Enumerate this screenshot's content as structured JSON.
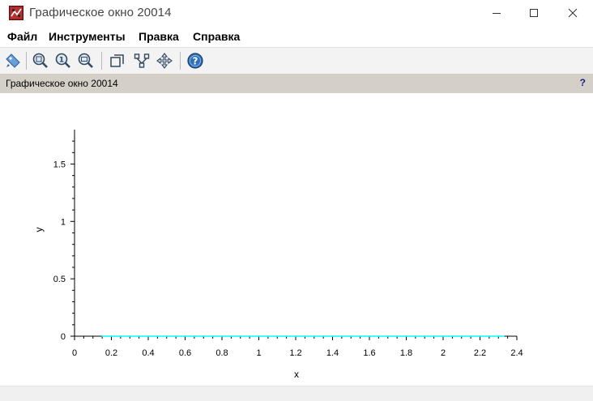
{
  "window": {
    "title": "Графическое окно 20014",
    "icon": "scilab-figure-icon",
    "controls": [
      "minimize-icon",
      "maximize-icon",
      "close-icon"
    ]
  },
  "menu": {
    "items": [
      "Файл",
      "Инструменты",
      "Правка",
      "Справка"
    ]
  },
  "toolbar": {
    "buttons": [
      "datatip-icon",
      "zoom-in-icon",
      "zoom-original-icon",
      "zoom-out-icon",
      "rotate-2d-icon",
      "edit-data-icon",
      "pan-icon",
      "help-icon"
    ]
  },
  "infobar": {
    "text": "Графическое окно 20014",
    "help_mark": "?"
  },
  "chart_data": {
    "type": "line",
    "title": "",
    "xlabel": "x",
    "ylabel": "y",
    "xlim": [
      0,
      2.4
    ],
    "ylim": [
      0,
      1.8
    ],
    "xticks": [
      "0",
      "0.2",
      "0.4",
      "0.6",
      "0.8",
      "1",
      "1.2",
      "1.4",
      "1.6",
      "1.8",
      "2",
      "2.2",
      "2.4"
    ],
    "yticks": [
      "0",
      "0.5",
      "1",
      "1.5"
    ],
    "grid": false,
    "line_color": "#00ffff",
    "series": [
      {
        "x": [
          0.2,
          0.8,
          1.6,
          2.0,
          2.19,
          2.29,
          2.33,
          2.32,
          2.25,
          2.12,
          1.92,
          1.7,
          1.4,
          1.0,
          0.6,
          0.3,
          0.18,
          0.15,
          0.2,
          0.35,
          0.6,
          0.95,
          1.3,
          1.65,
          1.95,
          2.13,
          2.21,
          2.22,
          2.15,
          2.0,
          1.78,
          1.5,
          1.15,
          0.8,
          0.45,
          0.22,
          0.18,
          0.2,
          0.35,
          0.6,
          0.95,
          1.3,
          1.6,
          1.85,
          2.0,
          2.04,
          1.99,
          1.85,
          1.62,
          1.32,
          0.95,
          0.62,
          0.42,
          0.46,
          0.62,
          0.85,
          1.05,
          1.25,
          1.4,
          1.47,
          1.46,
          1.36,
          1.17,
          0.92,
          0.7,
          0.55,
          0.56,
          0.7,
          0.9,
          1.08,
          1.22,
          1.3,
          1.3,
          1.2,
          1.05,
          0.88,
          0.8,
          0.83,
          0.95,
          1.05,
          1.1,
          1.09,
          1.0,
          0.95,
          0.98,
          1.04,
          1.1,
          1.14,
          1.12,
          1.08,
          1.15
        ],
        "y": [
          0.0,
          0.0,
          0.0,
          0.0,
          0.0,
          0.0,
          0.0,
          0.0,
          0.0,
          0.0,
          0.0,
          0.0,
          0.0,
          0.0,
          0.0,
          0.0,
          0.0,
          0.0,
          0.0,
          0.0,
          0.0,
          0.0,
          0.0,
          0.0,
          0.0,
          0.0,
          0.0,
          0.0,
          0.0,
          0.0,
          0.0,
          0.0,
          0.0,
          0.0,
          0.0,
          0.0,
          0.0,
          0.0,
          0.0,
          0.0,
          0.0,
          0.0,
          0.0,
          0.0,
          0.0,
          0.0,
          0.0,
          0.0,
          0.0,
          0.0,
          0.0,
          0.0,
          0.0,
          0.0,
          0.0,
          0.0,
          0.0,
          0.0,
          0.0,
          0.0,
          0.0,
          0.0,
          0.0,
          0.0,
          0.0,
          0.0,
          0.0,
          0.0,
          0.0,
          0.0,
          0.0,
          0.0,
          0.0,
          0.0,
          0.0,
          0.0,
          0.0,
          0.0,
          0.0,
          0.0,
          0.0,
          0.0,
          0.0,
          0.0,
          0.0,
          0.0,
          0.0,
          0.0,
          0.0,
          0.0,
          0.0
        ]
      }
    ]
  }
}
